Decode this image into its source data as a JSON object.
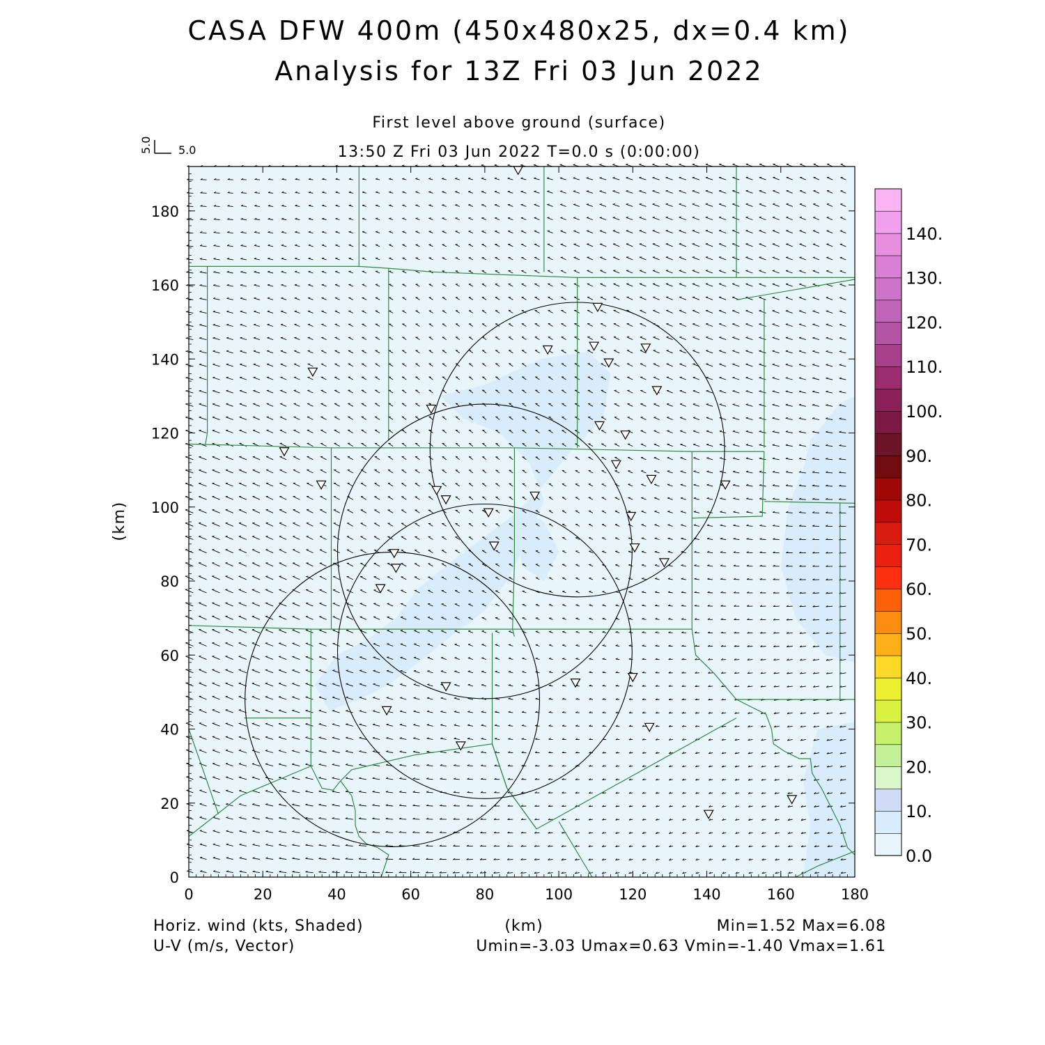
{
  "title": "CASA DFW 400m (450x480x25, dx=0.4 km)",
  "subtitle": "Analysis for 13Z Fri 03 Jun 2022",
  "level_label": "First level above ground (surface)",
  "time_label": "13:50 Z Fri 03 Jun 2022    T=0.0 s (0:00:00)",
  "vector_key": {
    "u_label": "5.0",
    "v_label": "5.0"
  },
  "footer": {
    "left1": "Horiz. wind (kts, Shaded)",
    "left2": "U-V (m/s, Vector)",
    "center": "(km)",
    "right1": "Min=1.52 Max=6.08",
    "right2": "Umin=-3.03 Umax=0.63 Vmin=-1.40 Vmax=1.61"
  },
  "colors": {
    "background_field": "#e8f6fc",
    "shade_band2": "#d8ecfb",
    "county_lines": "#2e8b3e",
    "range_rings": "#000000",
    "vectors": "#000000"
  },
  "chart_data": {
    "type": "vector_field_map",
    "xlabel": "(km)",
    "ylabel": "(km)",
    "xlim": [
      0,
      180
    ],
    "ylim": [
      0,
      192
    ],
    "xticks": [
      0,
      20,
      40,
      60,
      80,
      100,
      120,
      140,
      160,
      180
    ],
    "yticks": [
      0,
      20,
      40,
      60,
      80,
      100,
      120,
      140,
      160,
      180
    ],
    "colorbar": {
      "labels": [
        "0.0",
        "10.",
        "20.",
        "30.",
        "40.",
        "50.",
        "60.",
        "70.",
        "80.",
        "90.",
        "100.",
        "110.",
        "120.",
        "130.",
        "140."
      ],
      "colors": [
        "#e8f6fc",
        "#d8ecfb",
        "#d0dcf7",
        "#d9f7c8",
        "#c4f09a",
        "#c6f06a",
        "#d8f040",
        "#ecf030",
        "#fcd828",
        "#fcb018",
        "#fc8c10",
        "#fc6008",
        "#fc3010",
        "#ec2010",
        "#d81c10",
        "#c00c08",
        "#a00808",
        "#700c10",
        "#6c1428",
        "#7c1844",
        "#8c2058",
        "#9c2c70",
        "#a8408c",
        "#b454a4",
        "#c064b8",
        "#cc74c8",
        "#d880d4",
        "#e890e0",
        "#f0a0ec",
        "#fcb4f4"
      ],
      "min": 0,
      "max": 140
    },
    "range_rings": [
      {
        "center": [
          105,
          115.5
        ],
        "radius_km": 39.8
      },
      {
        "center": [
          80,
          88
        ],
        "radius_km": 39.8
      },
      {
        "center": [
          80,
          61
        ],
        "radius_km": 39.8
      },
      {
        "center": [
          55,
          48
        ],
        "radius_km": 39.8
      }
    ],
    "stations": [
      [
        89,
        191
      ],
      [
        110.5,
        154
      ],
      [
        97,
        142.5
      ],
      [
        109.5,
        143.5
      ],
      [
        123.5,
        143
      ],
      [
        113.5,
        139
      ],
      [
        33.5,
        136.5
      ],
      [
        126.5,
        131.5
      ],
      [
        65.5,
        126.5
      ],
      [
        111,
        122
      ],
      [
        118,
        119.5
      ],
      [
        25.8,
        115
      ],
      [
        115.5,
        111.5
      ],
      [
        35.8,
        106
      ],
      [
        125,
        107.5
      ],
      [
        145,
        106
      ],
      [
        67,
        104.5
      ],
      [
        69.5,
        102
      ],
      [
        93.5,
        103
      ],
      [
        81,
        98.5
      ],
      [
        119.5,
        97.5
      ],
      [
        82.5,
        89.5
      ],
      [
        120.5,
        89
      ],
      [
        55.5,
        87.5
      ],
      [
        56,
        83.5
      ],
      [
        51.8,
        78
      ],
      [
        128.5,
        85
      ],
      [
        69.5,
        51.5
      ],
      [
        104.5,
        52.5
      ],
      [
        120,
        54
      ],
      [
        53.5,
        45
      ],
      [
        124.5,
        40.5
      ],
      [
        73.5,
        35.5
      ],
      [
        163,
        21
      ],
      [
        140.5,
        17
      ]
    ],
    "county_lines": [
      [
        [
          0,
          165
        ],
        [
          46,
          165
        ],
        [
          54,
          164.5
        ],
        [
          66,
          163.5
        ],
        [
          105,
          162
        ],
        [
          118,
          162
        ],
        [
          148,
          162
        ]
      ],
      [
        [
          46,
          192
        ],
        [
          46,
          165
        ]
      ],
      [
        [
          96,
          192
        ],
        [
          96,
          163.5
        ]
      ],
      [
        [
          148,
          192
        ],
        [
          148,
          162
        ],
        [
          180,
          162
        ]
      ],
      [
        [
          148,
          156
        ],
        [
          180,
          161.5
        ]
      ],
      [
        [
          5,
          165
        ],
        [
          5,
          120
        ],
        [
          4.5,
          117
        ]
      ],
      [
        [
          54,
          164.5
        ],
        [
          54,
          118
        ]
      ],
      [
        [
          105,
          162
        ],
        [
          105,
          116
        ]
      ],
      [
        [
          155.5,
          156
        ],
        [
          155.5,
          116
        ]
      ],
      [
        [
          0,
          117
        ],
        [
          38.5,
          116
        ],
        [
          54,
          116
        ],
        [
          88,
          116
        ],
        [
          136,
          115
        ],
        [
          155.5,
          115
        ]
      ],
      [
        [
          38.5,
          116
        ],
        [
          38.5,
          67
        ]
      ],
      [
        [
          88,
          116
        ],
        [
          88,
          85
        ],
        [
          87.5,
          67
        ],
        [
          88,
          65
        ]
      ],
      [
        [
          136,
          115
        ],
        [
          136,
          97
        ],
        [
          155,
          97.5
        ],
        [
          155.5,
          115
        ]
      ],
      [
        [
          155.5,
          101.5
        ],
        [
          180,
          101
        ]
      ],
      [
        [
          136,
          97
        ],
        [
          136,
          67
        ]
      ],
      [
        [
          0,
          68
        ],
        [
          33,
          67
        ],
        [
          88,
          67
        ],
        [
          136,
          67
        ]
      ],
      [
        [
          176,
          101
        ],
        [
          176,
          48
        ]
      ],
      [
        [
          33,
          67
        ],
        [
          33,
          43
        ],
        [
          33,
          30
        ]
      ],
      [
        [
          82,
          66
        ],
        [
          82,
          36
        ]
      ],
      [
        [
          136,
          67
        ],
        [
          137,
          60
        ],
        [
          142,
          55
        ],
        [
          148,
          48
        ],
        [
          180,
          48
        ]
      ],
      [
        [
          148,
          48
        ],
        [
          156,
          44
        ],
        [
          157.5,
          40
        ],
        [
          158,
          36
        ],
        [
          161,
          34
        ],
        [
          165,
          32
        ],
        [
          168,
          32
        ],
        [
          168.5,
          28
        ],
        [
          171,
          24
        ],
        [
          173,
          20
        ],
        [
          175,
          16
        ],
        [
          176,
          14
        ],
        [
          178,
          8
        ],
        [
          180,
          6
        ]
      ],
      [
        [
          15,
          43
        ],
        [
          33,
          43
        ]
      ],
      [
        [
          0,
          40
        ],
        [
          8,
          17
        ]
      ],
      [
        [
          0,
          11
        ],
        [
          14,
          22
        ],
        [
          33,
          30
        ],
        [
          36,
          24
        ],
        [
          39,
          23.5
        ],
        [
          41,
          26
        ],
        [
          44,
          29
        ],
        [
          61,
          33
        ],
        [
          82,
          36
        ],
        [
          86,
          24
        ],
        [
          94,
          13
        ],
        [
          148,
          43
        ]
      ],
      [
        [
          41,
          26
        ],
        [
          44,
          22
        ],
        [
          45,
          18
        ],
        [
          45,
          14
        ],
        [
          46,
          11
        ],
        [
          48,
          9
        ],
        [
          51,
          8
        ],
        [
          54,
          6
        ],
        [
          52,
          0
        ]
      ],
      [
        [
          100,
          15
        ],
        [
          109,
          0
        ]
      ],
      [
        [
          82,
          36
        ],
        [
          86,
          24
        ],
        [
          94,
          13
        ]
      ],
      [
        [
          164,
          0
        ],
        [
          170,
          3
        ],
        [
          180,
          7
        ]
      ]
    ],
    "wind_min": 1.52,
    "wind_max": 6.08,
    "u_range": [
      -3.03,
      0.63
    ],
    "v_range": [
      -1.4,
      1.61
    ]
  }
}
